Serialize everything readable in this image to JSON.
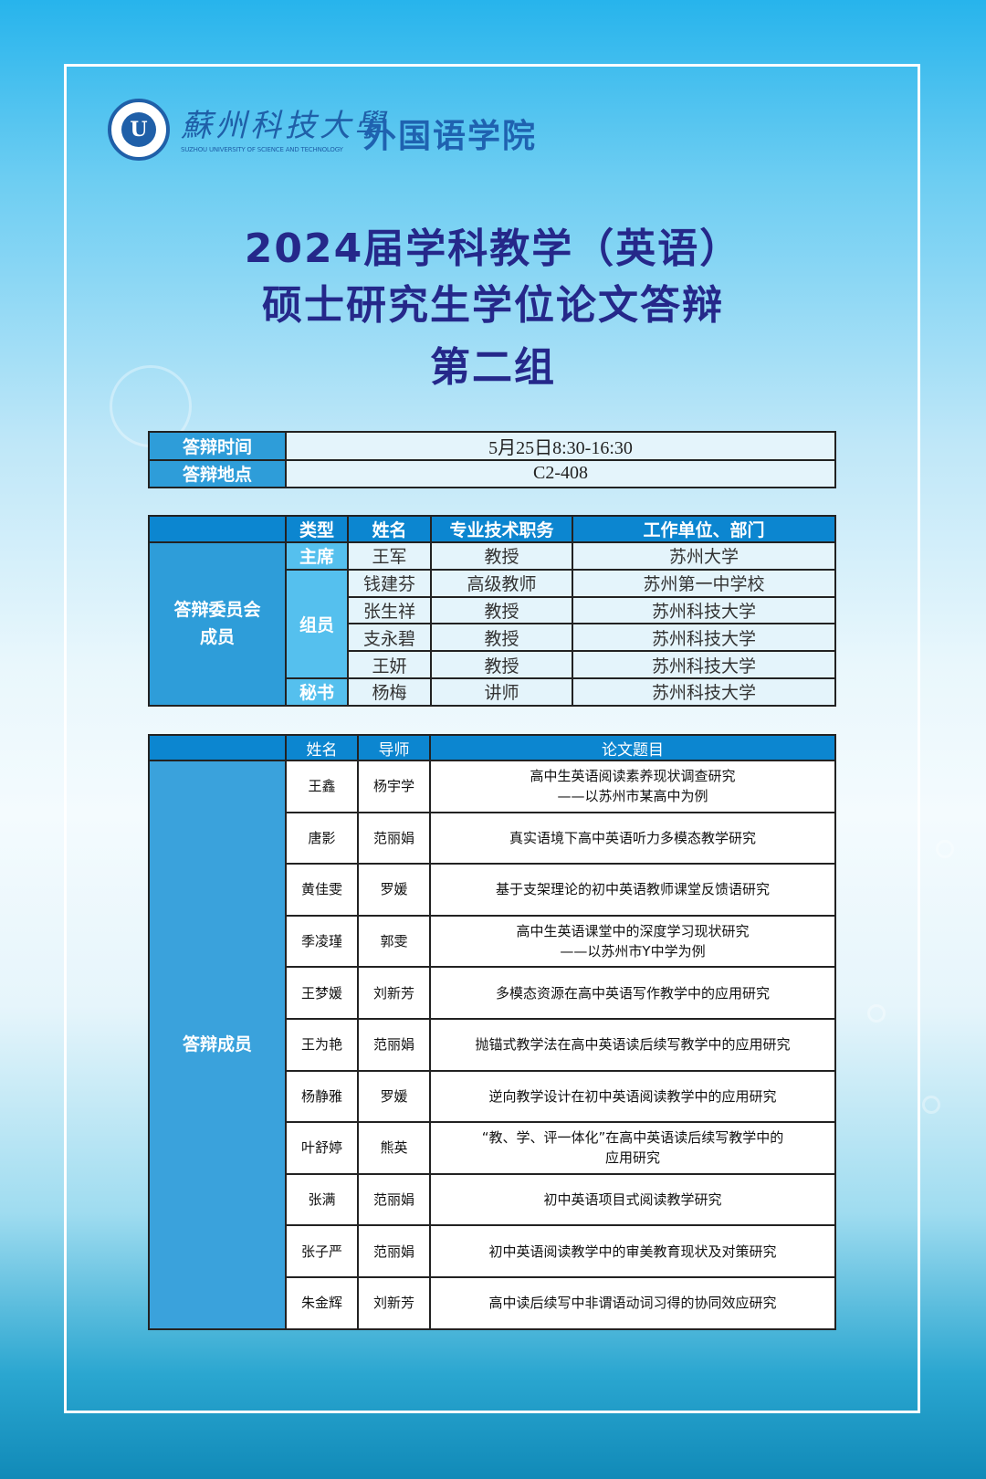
{
  "header": {
    "university_cn": "蘇州科技大學",
    "university_en": "SUZHOU UNIVERSITY OF SCIENCE AND TECHNOLOGY",
    "school": "外国语学院"
  },
  "title": {
    "line1": "2024届学科教学（英语）",
    "line2": "硕士研究生学位论文答辩",
    "line3": "第二组"
  },
  "info": {
    "time_label": "答辩时间",
    "time_value": "5月25日8:30-16:30",
    "place_label": "答辩地点",
    "place_value": "C2-408"
  },
  "committee": {
    "group_label": "答辩委员会成员",
    "headers": [
      "",
      "类型",
      "姓名",
      "专业技术职务",
      "工作单位、部门"
    ],
    "roles": {
      "chair": "主席",
      "members": "组员",
      "secretary": "秘书"
    },
    "rows": [
      {
        "name": "王军",
        "title": "教授",
        "unit": "苏州大学"
      },
      {
        "name": "钱建芬",
        "title": "高级教师",
        "unit": "苏州第一中学校"
      },
      {
        "name": "张生祥",
        "title": "教授",
        "unit": "苏州科技大学"
      },
      {
        "name": "支永碧",
        "title": "教授",
        "unit": "苏州科技大学"
      },
      {
        "name": "王妍",
        "title": "教授",
        "unit": "苏州科技大学"
      },
      {
        "name": "杨梅",
        "title": "讲师",
        "unit": "苏州科技大学"
      }
    ]
  },
  "students": {
    "group_label": "答辩成员",
    "headers": [
      "",
      "姓名",
      "导师",
      "论文题目"
    ],
    "rows": [
      {
        "name": "王鑫",
        "advisor": "杨宇学",
        "topic": "高中生英语阅读素养现状调查研究",
        "topic2": "——以苏州市某高中为例"
      },
      {
        "name": "唐影",
        "advisor": "范丽娟",
        "topic": "真实语境下高中英语听力多模态教学研究"
      },
      {
        "name": "黄佳雯",
        "advisor": "罗媛",
        "topic": "基于支架理论的初中英语教师课堂反馈语研究"
      },
      {
        "name": "季凌瑾",
        "advisor": "郭雯",
        "topic": "高中生英语课堂中的深度学习现状研究",
        "topic2": "——以苏州市Y中学为例"
      },
      {
        "name": "王梦媛",
        "advisor": "刘新芳",
        "topic": "多模态资源在高中英语写作教学中的应用研究"
      },
      {
        "name": "王为艳",
        "advisor": "范丽娟",
        "topic": "抛锚式教学法在高中英语读后续写教学中的应用研究"
      },
      {
        "name": "杨静雅",
        "advisor": "罗媛",
        "topic": "逆向教学设计在初中英语阅读教学中的应用研究"
      },
      {
        "name": "叶舒婷",
        "advisor": "熊英",
        "topic": "“教、学、评一体化”在高中英语读后续写教学中的",
        "topic2": "应用研究"
      },
      {
        "name": "张满",
        "advisor": "范丽娟",
        "topic": "初中英语项目式阅读教学研究"
      },
      {
        "name": "张子严",
        "advisor": "范丽娟",
        "topic": "初中英语阅读教学中的审美教育现状及对策研究"
      },
      {
        "name": "朱金辉",
        "advisor": "刘新芳",
        "topic": "高中读后续写中非谓语动词习得的协同效应研究"
      }
    ]
  }
}
